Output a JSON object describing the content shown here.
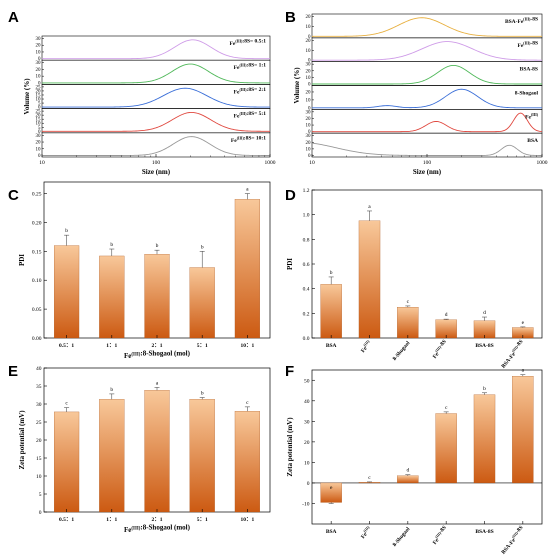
{
  "panel_letters": [
    "A",
    "B",
    "C",
    "D",
    "E",
    "F"
  ],
  "colors": {
    "bar_top": "#f8c89a",
    "bar_bottom": "#cc5a12",
    "axis": "#000000",
    "curve_colors": [
      "#cf9ce8",
      "#50b85a",
      "#3b6fd8",
      "#e0483f",
      "#999999",
      "#e8b040"
    ]
  },
  "chart_data": [
    {
      "panel": "A",
      "type": "line",
      "xlabel": "Size (nm)",
      "ylabel": "Volume (%)",
      "x_scale": "log",
      "xlim": [
        10,
        1000
      ],
      "x_ticks": [
        "10",
        "100",
        "1000"
      ],
      "series": [
        {
          "name": "Fe(III):8S= 0.5:1",
          "color": "#cf9ce8",
          "peak": 210,
          "width": 0.16,
          "ylim": [
            0,
            30
          ],
          "y_ticks": [
            "0",
            "10",
            "20",
            "30"
          ]
        },
        {
          "name": "Fe(III):8S= 1:1",
          "color": "#50b85a",
          "peak": 200,
          "width": 0.16,
          "ylim": [
            0,
            30
          ],
          "y_ticks": [
            "0",
            "10",
            "20",
            "30"
          ]
        },
        {
          "name": "Fe(III):8S= 2:1",
          "color": "#3b6fd8",
          "peak": 180,
          "width": 0.19,
          "ylim": [
            0,
            25
          ],
          "y_ticks": [
            "0",
            "5",
            "10",
            "15",
            "20",
            "25"
          ]
        },
        {
          "name": "Fe(III):8S= 5:1",
          "color": "#e0483f",
          "peak": 205,
          "width": 0.17,
          "ylim": [
            0,
            25
          ],
          "y_ticks": [
            "0",
            "5",
            "10",
            "15",
            "20",
            "25"
          ]
        },
        {
          "name": "Fe(III):8S= 10:1",
          "color": "#999999",
          "peak": 205,
          "width": 0.16,
          "ylim": [
            0,
            30
          ],
          "y_ticks": [
            "0",
            "10",
            "20",
            "30"
          ]
        }
      ]
    },
    {
      "panel": "B",
      "type": "line",
      "xlabel": "Size (nm)",
      "ylabel": "Volume (%)",
      "x_scale": "log",
      "xlim": [
        10,
        1000
      ],
      "x_ticks": [
        "10",
        "100",
        "1000"
      ],
      "series": [
        {
          "name": "BSA-Fe(III)-8S",
          "color": "#e8b040",
          "peaks": [
            [
              90,
              0.2,
              1
            ]
          ],
          "ylim": [
            0,
            20
          ],
          "y_ticks": [
            "0",
            "10",
            "20"
          ]
        },
        {
          "name": "Fe(III)-8S",
          "color": "#cf9ce8",
          "peaks": [
            [
              150,
              0.22,
              1
            ]
          ],
          "ylim": [
            0,
            20
          ],
          "y_ticks": [
            "0",
            "10",
            "20"
          ]
        },
        {
          "name": "BSA-8S",
          "color": "#50b85a",
          "peaks": [
            [
              170,
              0.14,
              1
            ]
          ],
          "ylim": [
            0,
            30
          ],
          "y_ticks": [
            "0",
            "10",
            "20",
            "30"
          ]
        },
        {
          "name": "8-Shogaol",
          "color": "#3b6fd8",
          "peaks": [
            [
              45,
              0.08,
              0.12
            ],
            [
              200,
              0.14,
              1
            ]
          ],
          "ylim": [
            0,
            25
          ],
          "y_ticks": [
            "0",
            "10",
            "20"
          ]
        },
        {
          "name": "Fe(III)",
          "color": "#e0483f",
          "peaks": [
            [
              120,
              0.09,
              0.55
            ],
            [
              650,
              0.06,
              1
            ]
          ],
          "ylim": [
            0,
            30
          ],
          "y_ticks": [
            "0",
            "10",
            "20",
            "30"
          ]
        },
        {
          "name": "BSA",
          "color": "#999999",
          "peaks": [
            [
              8,
              0.3,
              0.7
            ],
            [
              520,
              0.07,
              0.55
            ]
          ],
          "ylim": [
            0,
            30
          ],
          "y_ticks": [
            "0",
            "10",
            "20",
            "30"
          ]
        }
      ]
    },
    {
      "panel": "C",
      "type": "bar",
      "categories": [
        "0.5：1",
        "1：1",
        "2：1",
        "5：1",
        "10：1"
      ],
      "values": [
        0.16,
        0.142,
        0.145,
        0.122,
        0.24
      ],
      "errors": [
        0.018,
        0.012,
        0.007,
        0.028,
        0.01
      ],
      "letters": [
        "b",
        "b",
        "b",
        "b",
        "a"
      ],
      "xlabel": "Fe(III):8-Shogaol (mol)",
      "ylabel": "PDI",
      "ylim": [
        0,
        0.27
      ],
      "y_ticks": [
        0,
        0.05,
        0.1,
        0.15,
        0.2,
        0.25
      ],
      "y_tick_labels": [
        "0.00",
        "0.05",
        "0.10",
        "0.15",
        "0.20",
        "0.25"
      ]
    },
    {
      "panel": "D",
      "type": "bar",
      "categories": [
        "BSA",
        "Fe(III)",
        "8-Shogaol",
        "Fe(III)-8S",
        "BSA-8S",
        "BSA-Fe(III)-8S"
      ],
      "values": [
        0.435,
        0.95,
        0.25,
        0.148,
        0.14,
        0.085
      ],
      "errors": [
        0.06,
        0.08,
        0.01,
        0.005,
        0.03,
        0.005
      ],
      "letters": [
        "b",
        "a",
        "c",
        "d",
        "d",
        "e"
      ],
      "xlabel": "",
      "ylabel": "PDI",
      "ylim": [
        0,
        1.2
      ],
      "y_ticks": [
        0,
        0.2,
        0.4,
        0.6,
        0.8,
        1.0,
        1.2
      ],
      "y_tick_labels": [
        "0.0",
        "0.2",
        "0.4",
        "0.6",
        "0.8",
        "1.0",
        "1.2"
      ]
    },
    {
      "panel": "E",
      "type": "bar",
      "categories": [
        "0.5：1",
        "1：1",
        "2：1",
        "5：1",
        "10：1"
      ],
      "values": [
        27.8,
        31.3,
        33.8,
        31.3,
        28
      ],
      "errors": [
        1.2,
        1.5,
        0.8,
        0.5,
        1.2
      ],
      "letters": [
        "c",
        "b",
        "a",
        "b",
        "c"
      ],
      "xlabel": "Fe(III):8-Shogaol (mol)",
      "ylabel": "Zeta potential (mV)",
      "ylim": [
        0,
        40
      ],
      "y_ticks": [
        0,
        5,
        10,
        15,
        20,
        25,
        30,
        35,
        40
      ],
      "y_tick_labels": [
        "0",
        "5",
        "10",
        "15",
        "20",
        "25",
        "30",
        "35",
        "40"
      ]
    },
    {
      "panel": "F",
      "type": "bar",
      "categories": [
        "BSA",
        "Fe(III)",
        "8-Shogaol",
        "Fe(III)-8S",
        "BSA-8S",
        "BSA-Fe(III)-8S"
      ],
      "values": [
        -9.5,
        0.3,
        3.5,
        33.8,
        43,
        52
      ],
      "errors": [
        0.5,
        0.2,
        0.5,
        0.8,
        0.9,
        0.7
      ],
      "letters": [
        "e",
        "c",
        "d",
        "c",
        "b",
        "a"
      ],
      "xlabel": "",
      "ylabel": "Zeta potential (mV)",
      "ylim": [
        -20,
        55
      ],
      "y_ticks": [
        -10,
        0,
        10,
        20,
        30,
        40,
        50
      ],
      "y_tick_labels": [
        "-10",
        "0",
        "10",
        "20",
        "30",
        "40",
        "50"
      ]
    }
  ]
}
